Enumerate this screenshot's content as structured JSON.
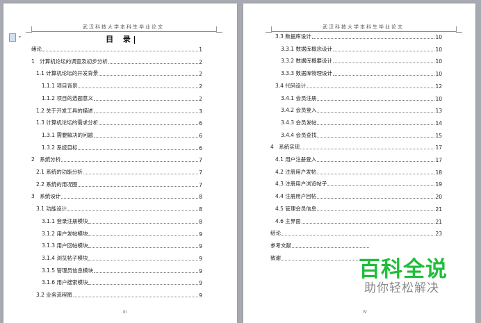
{
  "header_text": "武汉科技大学本科生毕业论文",
  "toc_title": "目 录",
  "left_page": {
    "page_number": "III",
    "entries": [
      {
        "level": 0,
        "text": "绪论",
        "page": "1"
      },
      {
        "level": 0,
        "text": "1　计算机论坛的调查及初步分析",
        "page": "2"
      },
      {
        "level": 1,
        "text": "1.1 计算机论坛的开发背景",
        "page": "2"
      },
      {
        "level": 2,
        "text": "1.1.1  项目背景",
        "page": "2"
      },
      {
        "level": 2,
        "text": "1.1.2  项目的选题意义",
        "page": "2"
      },
      {
        "level": 1,
        "text": "1.2  关于开发工具的描述",
        "page": "3"
      },
      {
        "level": 1,
        "text": "1.3  计算机论坛的需求分析",
        "page": "6"
      },
      {
        "level": 2,
        "text": "1.3.1  需要解决的问题",
        "page": "6"
      },
      {
        "level": 2,
        "text": "1.3.2 系统目标",
        "page": "6"
      },
      {
        "level": 0,
        "text": "2　系统分析",
        "page": "7"
      },
      {
        "level": 1,
        "text": "2.1  系统的功能分析",
        "page": "7"
      },
      {
        "level": 1,
        "text": "2.2  系统的用况图",
        "page": "7"
      },
      {
        "level": 0,
        "text": "3　系统设计",
        "page": "8"
      },
      {
        "level": 1,
        "text": "3.1  功能设计",
        "page": "8"
      },
      {
        "level": 2,
        "text": "3.1.1  登录注册模块",
        "page": "8"
      },
      {
        "level": 2,
        "text": "3.1.2 用户发帖模块",
        "page": "9"
      },
      {
        "level": 2,
        "text": "3.1.3 用户回帖模块",
        "page": "9"
      },
      {
        "level": 2,
        "text": "3.1.4 浏览帖子模块",
        "page": "9"
      },
      {
        "level": 2,
        "text": "3.1.5 管理员信息模块",
        "page": "9"
      },
      {
        "level": 2,
        "text": "3.1.6 用户搜索模块",
        "page": "9"
      },
      {
        "level": 1,
        "text": "3.2 业务流程图",
        "page": "9"
      }
    ]
  },
  "right_page": {
    "page_number": "IV",
    "entries": [
      {
        "level": 1,
        "text": "3.3 数据库设计",
        "page": "10"
      },
      {
        "level": 2,
        "text": "3.3.1  数据库概念设计",
        "page": "10"
      },
      {
        "level": 2,
        "text": "3.3.2  数据库概要设计",
        "page": "10"
      },
      {
        "level": 2,
        "text": "3.3.3  数据库物理设计",
        "page": "10"
      },
      {
        "level": 1,
        "text": "3.4  代码设计",
        "page": "12"
      },
      {
        "level": 2,
        "text": "3.4.1  会员注册",
        "page": "10"
      },
      {
        "level": 2,
        "text": "3.4.2  会员登入",
        "page": "13"
      },
      {
        "level": 2,
        "text": "3.4.3  会员发帖",
        "page": "14"
      },
      {
        "level": 2,
        "text": "3.4.4  会员查找",
        "page": "15"
      },
      {
        "level": 0,
        "text": "4　系统实现",
        "page": "17"
      },
      {
        "level": 1,
        "text": "4.1  用户注册登入",
        "page": "17"
      },
      {
        "level": 1,
        "text": "4.2  注册用户发帖",
        "page": "18"
      },
      {
        "level": 1,
        "text": "4.3  注册用户浏览帖子",
        "page": "19"
      },
      {
        "level": 1,
        "text": "4.4  注册用户回帖",
        "page": "20"
      },
      {
        "level": 1,
        "text": "4.5 管理会员信息",
        "page": "21"
      },
      {
        "level": 1,
        "text": "4.6 主界面",
        "page": "21"
      },
      {
        "level": 0,
        "text": "结论",
        "page": "23"
      },
      {
        "level": 0,
        "text": "参考文献",
        "page": "",
        "partial": true
      },
      {
        "level": 0,
        "text": "致谢",
        "page": "",
        "partial": true
      }
    ]
  },
  "watermark": {
    "title": "百科全说",
    "subtitle": "助你轻松解决",
    "color": "#1fbe3a"
  }
}
